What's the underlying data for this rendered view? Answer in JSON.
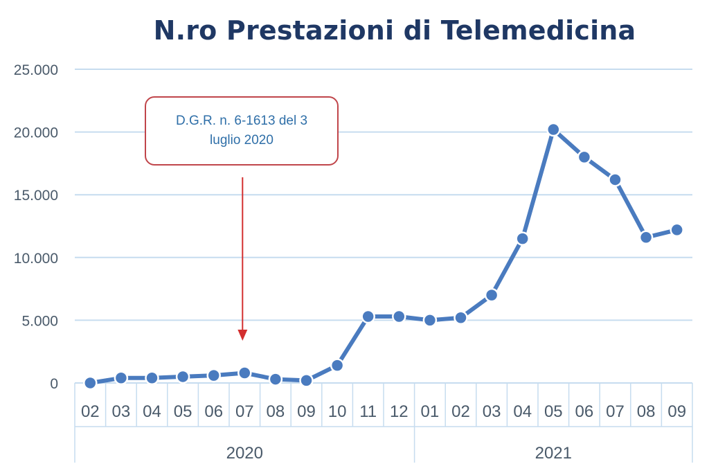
{
  "chart_data": {
    "type": "line",
    "title": "N.ro Prestazioni di Telemedicina",
    "xlabel": "",
    "ylabel": "",
    "ylim": [
      0,
      25000
    ],
    "yticks": [
      0,
      5000,
      10000,
      15000,
      20000,
      25000
    ],
    "ytick_labels": [
      "0",
      "5.000",
      "10.000",
      "15.000",
      "20.000",
      "25.000"
    ],
    "categories": [
      "02",
      "03",
      "04",
      "05",
      "06",
      "07",
      "08",
      "09",
      "10",
      "11",
      "12",
      "01",
      "02",
      "03",
      "04",
      "05",
      "06",
      "07",
      "08",
      "09"
    ],
    "year_groups": [
      {
        "label": "2020",
        "count": 11
      },
      {
        "label": "2021",
        "count": 9
      }
    ],
    "series": [
      {
        "values": [
          0,
          400,
          400,
          500,
          600,
          800,
          300,
          200,
          1400,
          5300,
          5300,
          5000,
          5200,
          7000,
          11500,
          20200,
          18000,
          16200,
          11600,
          12200
        ]
      }
    ],
    "annotation": {
      "text": "D.G.R. n. 6-1613 del 3 luglio 2020",
      "category_index": 5
    },
    "grid": true,
    "legend": "none",
    "colors": {
      "line": "#4a7bbf",
      "grid": "#c6dcef",
      "annotation_border": "#c0454a",
      "arrow": "#d32f2f",
      "annotation_text": "#2f6fa8"
    }
  }
}
